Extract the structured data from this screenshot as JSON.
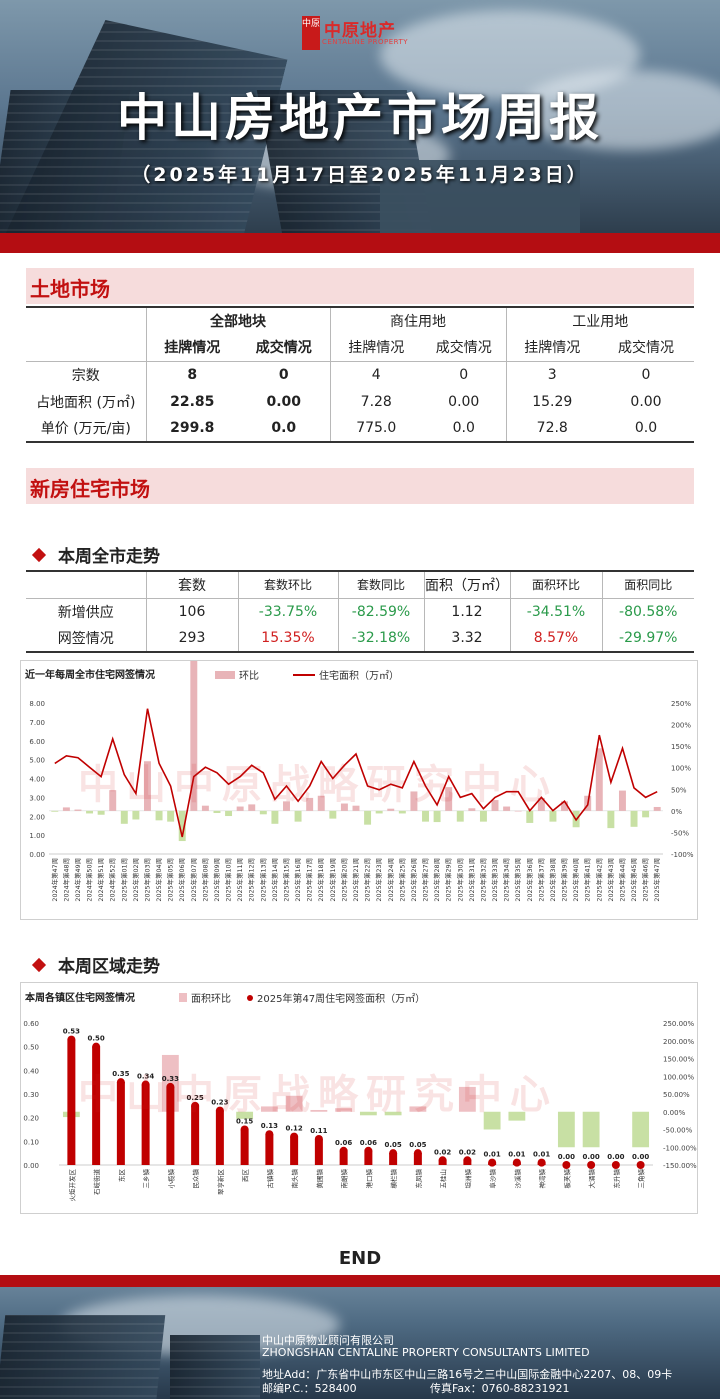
{
  "header": {
    "logo_mark": "中原",
    "logo_cn": "中原地产",
    "logo_en": "CENTALINE PROPERTY",
    "title": "中山房地产市场周报",
    "date_range": "（2025年11月17日至2025年11月23日）"
  },
  "land": {
    "section_title": "土地市场",
    "group_headers": [
      "全部地块",
      "商住用地",
      "工业用地"
    ],
    "col_headers": [
      "挂牌情况",
      "成交情况",
      "挂牌情况",
      "成交情况",
      "挂牌情况",
      "成交情况"
    ],
    "rows": [
      {
        "label": "宗数",
        "values": [
          "8",
          "0",
          "4",
          "0",
          "3",
          "0"
        ]
      },
      {
        "label": "占地面积 (万㎡)",
        "values": [
          "22.85",
          "0.00",
          "7.28",
          "0.00",
          "15.29",
          "0.00"
        ]
      },
      {
        "label": "单价 (万元/亩)",
        "values": [
          "299.8",
          "0.0",
          "775.0",
          "0.0",
          "72.8",
          "0.0"
        ]
      }
    ]
  },
  "newhome": {
    "section_title": "新房住宅市场",
    "weekly_title": "本周全市走势",
    "cols": [
      "套数",
      "套数环比",
      "套数同比",
      "面积（万㎡）",
      "面积环比",
      "面积同比"
    ],
    "rows": [
      {
        "label": "新增供应",
        "values": [
          "106",
          "-33.75%",
          "-82.59%",
          "1.12",
          "-34.51%",
          "-80.58%"
        ]
      },
      {
        "label": "网签情况",
        "values": [
          "293",
          "15.35%",
          "-32.18%",
          "3.32",
          "8.57%",
          "-29.97%"
        ]
      }
    ],
    "value_colors": [
      [
        "#222",
        "#2a9a4a",
        "#2a9a4a",
        "#222",
        "#2a9a4a",
        "#2a9a4a"
      ],
      [
        "#222",
        "#d02020",
        "#2a9a4a",
        "#222",
        "#d02020",
        "#2a9a4a"
      ]
    ],
    "region_title": "本周区域走势",
    "watermark": "中山中原战略研究中心"
  },
  "chart_data": [
    {
      "type": "bar+line",
      "title": "近一年每周全市住宅网签情况",
      "legend": [
        "环比",
        "住宅面积（万㎡）"
      ],
      "colors": {
        "bar": "#e8b4b8",
        "line": "#c00000"
      },
      "categories": [
        "2024年第47周",
        "2024年第48周",
        "2024年第49周",
        "2024年第50周",
        "2024年第51周",
        "2024年第52周",
        "2025年第01周",
        "2025年第02周",
        "2025年第03周",
        "2025年第04周",
        "2025年第05周",
        "2025年第06周",
        "2025年第07周",
        "2025年第08周",
        "2025年第09周",
        "2025年第10周",
        "2025年第11周",
        "2025年第12周",
        "2025年第13周",
        "2025年第14周",
        "2025年第15周",
        "2025年第16周",
        "2025年第17周",
        "2025年第18周",
        "2025年第19周",
        "2025年第20周",
        "2025年第21周",
        "2025年第22周",
        "2025年第23周",
        "2025年第24周",
        "2025年第25周",
        "2025年第26周",
        "2025年第27周",
        "2025年第28周",
        "2025年第29周",
        "2025年第30周",
        "2025年第31周",
        "2025年第32周",
        "2025年第33周",
        "2025年第34周",
        "2025年第35周",
        "2025年第36周",
        "2025年第37周",
        "2025年第38周",
        "2025年第39周",
        "2025年第40周",
        "2025年第41周",
        "2025年第42周",
        "2025年第43周",
        "2025年第44周",
        "2025年第45周",
        "2025年第46周",
        "2025年第47周"
      ],
      "series": [
        {
          "name": "住宅面积（万㎡）",
          "axis": "left",
          "values": [
            4.8,
            5.2,
            5.1,
            4.6,
            4.1,
            6.1,
            4.2,
            3.2,
            7.7,
            4.8,
            3.6,
            0.9,
            4.1,
            4.6,
            4.3,
            3.7,
            4.1,
            4.7,
            4.3,
            2.9,
            3.6,
            2.8,
            3.6,
            4.9,
            4.0,
            4.7,
            5.3,
            3.6,
            3.4,
            3.7,
            3.5,
            4.9,
            3.6,
            2.6,
            4.1,
            3.0,
            3.2,
            2.4,
            3.0,
            3.3,
            3.3,
            2.3,
            3.0,
            2.3,
            2.8,
            1.8,
            2.6,
            6.3,
            3.8,
            5.6,
            3.5,
            3.0,
            3.3
          ]
        },
        {
          "name": "环比",
          "axis": "right",
          "values": [
            -2,
            8,
            3,
            -6,
            -9,
            48,
            -30,
            -20,
            115,
            -22,
            -25,
            -70,
            380,
            12,
            -5,
            -12,
            10,
            15,
            -8,
            -30,
            22,
            -25,
            30,
            35,
            -18,
            17,
            12,
            -32,
            -6,
            5,
            -6,
            45,
            -25,
            -26,
            55,
            -25,
            6,
            -25,
            25,
            10,
            0,
            -28,
            30,
            -25,
            22,
            -38,
            35,
            145,
            -40,
            47,
            -37,
            -15,
            9
          ]
        }
      ],
      "ylim_left": [
        0,
        8
      ],
      "yticks_left": [
        "0.00",
        "1.00",
        "2.00",
        "3.00",
        "4.00",
        "5.00",
        "6.00",
        "7.00",
        "8.00"
      ],
      "ylim_right": [
        -100,
        250
      ],
      "yticks_right": [
        "-100%",
        "-50%",
        "0%",
        "50%",
        "100%",
        "150%",
        "200%",
        "250%"
      ]
    },
    {
      "type": "bar+dot",
      "title": "本周各镇区住宅网签情况",
      "legend": [
        "面积环比",
        "2025年第47周住宅网签面积（万㎡）"
      ],
      "colors": {
        "bar_pos": "#eebfc3",
        "bar_neg": "#c8e0a4",
        "column": "#c00000"
      },
      "categories": [
        "火炬开发区",
        "石岐街道",
        "东区",
        "三乡镇",
        "小榄镇",
        "民众镇",
        "翠亨新区",
        "西区",
        "古镇镇",
        "南头镇",
        "黄圃镇",
        "南朗镇",
        "港口镇",
        "横栏镇",
        "东凤镇",
        "五桂山",
        "坦洲镇",
        "阜沙镇",
        "沙溪镇",
        "神湾镇",
        "板芙镇",
        "大涌镇",
        "东升镇",
        "三角镇"
      ],
      "series": [
        {
          "name": "2025年第47周住宅网签面积（万㎡）",
          "axis": "left",
          "values": [
            0.53,
            0.5,
            0.35,
            0.34,
            0.33,
            0.25,
            0.23,
            0.15,
            0.13,
            0.12,
            0.11,
            0.06,
            0.06,
            0.05,
            0.05,
            0.02,
            0.02,
            0.01,
            0.01,
            0.01,
            0.0,
            0.0,
            0.0,
            0.0
          ]
        },
        {
          "name": "面积环比",
          "axis": "right",
          "values": [
            -15,
            0,
            0,
            0,
            160,
            0,
            0,
            -20,
            15,
            45,
            5,
            10,
            -10,
            -10,
            15,
            0,
            70,
            -50,
            -25,
            0,
            -100,
            -100,
            0,
            -100
          ]
        }
      ],
      "data_labels": [
        "0.53",
        "0.50",
        "0.35",
        "0.34",
        "0.33",
        "0.25",
        "0.23",
        "0.15",
        "0.13",
        "0.12",
        "0.11",
        "0.06",
        "0.06",
        "0.05",
        "0.05",
        "0.02",
        "0.02",
        "0.01",
        "0.01",
        "0.01",
        "0.00",
        "0.00",
        "0.00",
        "0.00"
      ],
      "ylim_left": [
        0,
        0.6
      ],
      "yticks_left": [
        "0.00",
        "0.10",
        "0.20",
        "0.30",
        "0.40",
        "0.50",
        "0.60"
      ],
      "ylim_right": [
        -150,
        250
      ],
      "yticks_right": [
        "-150.00%",
        "-100.00%",
        "-50.00%",
        "0.00%",
        "50.00%",
        "100.00%",
        "150.00%",
        "200.00%",
        "250.00%"
      ]
    }
  ],
  "end_text": "END",
  "footer": {
    "company_cn": "中山中原物业顾问有限公司",
    "company_en": "ZHONGSHAN CENTALINE PROPERTY CONSULTANTS LIMITED",
    "address": "地址Add：广东省中山市东区中山三路16号之三中山国际金融中心2207、08、09卡",
    "postcode": "邮编P.C.：528400",
    "fax": "传真Fax：0760-88231921"
  }
}
